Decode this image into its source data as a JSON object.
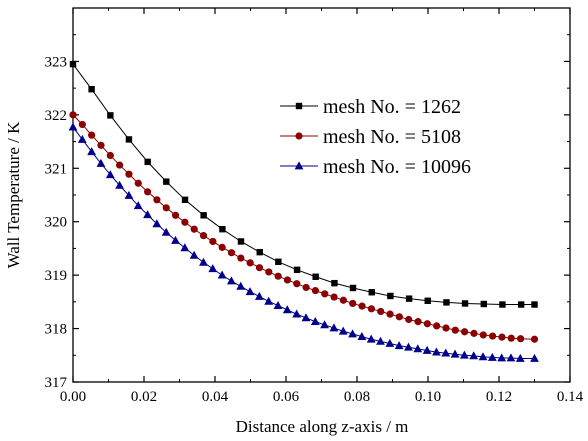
{
  "chart_data": {
    "type": "line",
    "xlabel": "Distance along z-axis / m",
    "ylabel": "Wall Temperature / K",
    "xlim": [
      0.0,
      0.14
    ],
    "ylim": [
      317,
      324
    ],
    "x_ticks": [
      0.0,
      0.02,
      0.04,
      0.06,
      0.08,
      0.1,
      0.12,
      0.14
    ],
    "x_tick_labels": [
      "0.00",
      "0.02",
      "0.04",
      "0.06",
      "0.08",
      "0.10",
      "0.12",
      "0.14"
    ],
    "y_ticks": [
      317,
      318,
      319,
      320,
      321,
      322,
      323
    ],
    "y_tick_labels": [
      "317",
      "318",
      "319",
      "320",
      "321",
      "322",
      "323"
    ],
    "grid": false,
    "legend_position": "top-right",
    "series": [
      {
        "name": "mesh No. = 1262",
        "marker": "square",
        "color": "#000000",
        "x": [
          0.0,
          0.00524,
          0.01052,
          0.01576,
          0.02104,
          0.02628,
          0.03156,
          0.0368,
          0.04208,
          0.04732,
          0.0526,
          0.05784,
          0.06312,
          0.06836,
          0.07364,
          0.07888,
          0.08416,
          0.0894,
          0.09468,
          0.09992,
          0.1052,
          0.11044,
          0.11572,
          0.12096,
          0.12624,
          0.13
        ],
        "y": [
          322.95,
          322.48,
          321.99,
          321.54,
          321.12,
          320.75,
          320.41,
          320.12,
          319.86,
          319.63,
          319.43,
          319.25,
          319.1,
          318.97,
          318.85,
          318.76,
          318.68,
          318.61,
          318.56,
          318.52,
          318.49,
          318.47,
          318.46,
          318.45,
          318.45,
          318.45
        ]
      },
      {
        "name": "mesh No. = 5108",
        "marker": "circle",
        "color": "#8b0000",
        "x": [
          0.0,
          0.00263,
          0.00525,
          0.00788,
          0.01051,
          0.01313,
          0.01576,
          0.01839,
          0.02101,
          0.02364,
          0.02627,
          0.02889,
          0.03152,
          0.03415,
          0.03677,
          0.0394,
          0.04203,
          0.04465,
          0.04728,
          0.04991,
          0.05253,
          0.05516,
          0.05779,
          0.06041,
          0.06304,
          0.06567,
          0.06829,
          0.07092,
          0.07355,
          0.07617,
          0.0788,
          0.08143,
          0.08405,
          0.08668,
          0.08931,
          0.09193,
          0.09456,
          0.09719,
          0.09981,
          0.10244,
          0.10507,
          0.10769,
          0.11032,
          0.11295,
          0.11557,
          0.1182,
          0.12083,
          0.12345,
          0.12608,
          0.13
        ],
        "y": [
          322.0,
          321.82,
          321.62,
          321.43,
          321.24,
          321.06,
          320.89,
          320.72,
          320.56,
          320.41,
          320.26,
          320.12,
          319.99,
          319.86,
          319.74,
          319.63,
          319.52,
          319.42,
          319.32,
          319.23,
          319.14,
          319.06,
          318.98,
          318.91,
          318.84,
          318.77,
          318.71,
          318.65,
          318.59,
          318.53,
          318.47,
          318.42,
          318.37,
          318.32,
          318.27,
          318.22,
          318.17,
          318.13,
          318.09,
          318.05,
          318.01,
          317.97,
          317.94,
          317.91,
          317.88,
          317.86,
          317.84,
          317.82,
          317.81,
          317.8
        ]
      },
      {
        "name": "mesh No. = 10096",
        "marker": "triangle",
        "color": "#00008b",
        "x": [
          0.0,
          0.00262,
          0.00525,
          0.00787,
          0.0105,
          0.01312,
          0.01575,
          0.01837,
          0.021,
          0.02362,
          0.02625,
          0.02887,
          0.0315,
          0.03412,
          0.03675,
          0.03937,
          0.042,
          0.04462,
          0.04725,
          0.04987,
          0.0525,
          0.05512,
          0.05775,
          0.06037,
          0.063,
          0.06562,
          0.06825,
          0.07087,
          0.0735,
          0.07612,
          0.07875,
          0.08137,
          0.084,
          0.08662,
          0.08925,
          0.09187,
          0.0945,
          0.09712,
          0.09975,
          0.10237,
          0.105,
          0.10762,
          0.11025,
          0.11287,
          0.1155,
          0.11812,
          0.12075,
          0.12337,
          0.126,
          0.13
        ],
        "y": [
          321.77,
          321.54,
          321.31,
          321.09,
          320.88,
          320.68,
          320.49,
          320.3,
          320.13,
          319.96,
          319.8,
          319.65,
          319.51,
          319.37,
          319.24,
          319.12,
          319.0,
          318.89,
          318.79,
          318.69,
          318.6,
          318.51,
          318.43,
          318.35,
          318.27,
          318.2,
          318.13,
          318.07,
          318.01,
          317.95,
          317.9,
          317.85,
          317.8,
          317.76,
          317.72,
          317.68,
          317.65,
          317.62,
          317.59,
          317.56,
          317.54,
          317.52,
          317.5,
          317.49,
          317.47,
          317.46,
          317.45,
          317.45,
          317.44,
          317.44
        ]
      }
    ]
  }
}
